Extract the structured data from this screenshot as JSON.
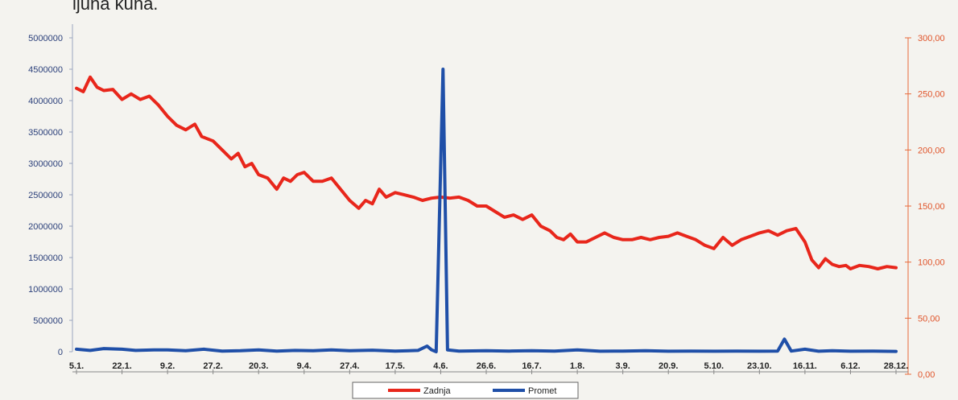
{
  "caption": "ijuna kuna.",
  "chart_data": {
    "type": "line",
    "x_labels": [
      "5.1.",
      "22.1.",
      "9.2.",
      "27.2.",
      "20.3.",
      "9.4.",
      "27.4.",
      "17.5.",
      "4.6.",
      "26.6.",
      "16.7.",
      "1.8.",
      "3.9.",
      "20.9.",
      "5.10.",
      "23.10.",
      "16.11.",
      "6.12.",
      "28.12."
    ],
    "left_axis": {
      "ticks": [
        0,
        500000,
        1000000,
        1500000,
        2000000,
        2500000,
        3000000,
        3500000,
        4000000,
        4500000,
        5000000
      ],
      "ylim": [
        0,
        5000000
      ]
    },
    "right_axis": {
      "ticks": [
        "0,00",
        "50,00",
        "100,00",
        "150,00",
        "200,00",
        "250,00",
        "300,00"
      ],
      "ylim": [
        0,
        300
      ]
    },
    "colors": {
      "zadnja": "#e8261b",
      "promet": "#1f4fa8",
      "right_axis": "#e86a3a",
      "left_axis": "#9aa4bf"
    },
    "series": [
      {
        "name": "Zadnja",
        "axis": "right",
        "values": [
          [
            0,
            255
          ],
          [
            0.15,
            252
          ],
          [
            0.3,
            265
          ],
          [
            0.45,
            256
          ],
          [
            0.6,
            253
          ],
          [
            0.8,
            254
          ],
          [
            1,
            245
          ],
          [
            1.2,
            250
          ],
          [
            1.4,
            245
          ],
          [
            1.6,
            248
          ],
          [
            1.8,
            240
          ],
          [
            2,
            230
          ],
          [
            2.2,
            222
          ],
          [
            2.4,
            218
          ],
          [
            2.6,
            223
          ],
          [
            2.75,
            212
          ],
          [
            3,
            208
          ],
          [
            3.2,
            200
          ],
          [
            3.4,
            192
          ],
          [
            3.55,
            197
          ],
          [
            3.7,
            185
          ],
          [
            3.85,
            188
          ],
          [
            4,
            178
          ],
          [
            4.2,
            175
          ],
          [
            4.4,
            165
          ],
          [
            4.55,
            175
          ],
          [
            4.7,
            172
          ],
          [
            4.85,
            178
          ],
          [
            5,
            180
          ],
          [
            5.2,
            172
          ],
          [
            5.4,
            172
          ],
          [
            5.6,
            175
          ],
          [
            5.8,
            165
          ],
          [
            6,
            155
          ],
          [
            6.2,
            148
          ],
          [
            6.35,
            155
          ],
          [
            6.5,
            152
          ],
          [
            6.65,
            165
          ],
          [
            6.8,
            158
          ],
          [
            7,
            162
          ],
          [
            7.2,
            160
          ],
          [
            7.4,
            158
          ],
          [
            7.6,
            155
          ],
          [
            7.8,
            157
          ],
          [
            8,
            158
          ],
          [
            8.2,
            157
          ],
          [
            8.4,
            158
          ],
          [
            8.6,
            155
          ],
          [
            8.8,
            150
          ],
          [
            9,
            150
          ],
          [
            9.2,
            145
          ],
          [
            9.4,
            140
          ],
          [
            9.6,
            142
          ],
          [
            9.8,
            138
          ],
          [
            10,
            142
          ],
          [
            10.2,
            132
          ],
          [
            10.4,
            128
          ],
          [
            10.55,
            122
          ],
          [
            10.7,
            120
          ],
          [
            10.85,
            125
          ],
          [
            11,
            118
          ],
          [
            11.2,
            118
          ],
          [
            11.4,
            122
          ],
          [
            11.6,
            126
          ],
          [
            11.8,
            122
          ],
          [
            12,
            120
          ],
          [
            12.2,
            120
          ],
          [
            12.4,
            122
          ],
          [
            12.6,
            120
          ],
          [
            12.8,
            122
          ],
          [
            13,
            123
          ],
          [
            13.2,
            126
          ],
          [
            13.4,
            123
          ],
          [
            13.6,
            120
          ],
          [
            13.8,
            115
          ],
          [
            14,
            112
          ],
          [
            14.2,
            122
          ],
          [
            14.4,
            115
          ],
          [
            14.6,
            120
          ],
          [
            14.8,
            123
          ],
          [
            15,
            126
          ],
          [
            15.2,
            128
          ],
          [
            15.4,
            124
          ],
          [
            15.6,
            128
          ],
          [
            15.8,
            130
          ],
          [
            16,
            118
          ],
          [
            16.15,
            102
          ],
          [
            16.3,
            95
          ],
          [
            16.45,
            103
          ],
          [
            16.6,
            98
          ],
          [
            16.75,
            96
          ],
          [
            16.9,
            97
          ],
          [
            17,
            94
          ],
          [
            17.2,
            97
          ],
          [
            17.4,
            96
          ],
          [
            17.6,
            94
          ],
          [
            17.8,
            96
          ],
          [
            18,
            95
          ]
        ]
      },
      {
        "name": "Promet",
        "axis": "left",
        "values": [
          [
            0,
            40000
          ],
          [
            0.3,
            20000
          ],
          [
            0.6,
            50000
          ],
          [
            1,
            40000
          ],
          [
            1.3,
            20000
          ],
          [
            1.7,
            30000
          ],
          [
            2,
            30000
          ],
          [
            2.4,
            15000
          ],
          [
            2.8,
            40000
          ],
          [
            3.2,
            10000
          ],
          [
            3.6,
            15000
          ],
          [
            4,
            30000
          ],
          [
            4.4,
            10000
          ],
          [
            4.8,
            20000
          ],
          [
            5.2,
            15000
          ],
          [
            5.6,
            30000
          ],
          [
            6,
            15000
          ],
          [
            6.5,
            25000
          ],
          [
            7,
            10000
          ],
          [
            7.5,
            20000
          ],
          [
            7.7,
            90000
          ],
          [
            7.8,
            30000
          ],
          [
            7.9,
            0
          ],
          [
            8.05,
            4500000
          ],
          [
            8.15,
            30000
          ],
          [
            8.4,
            10000
          ],
          [
            9,
            15000
          ],
          [
            9.5,
            10000
          ],
          [
            10,
            15000
          ],
          [
            10.5,
            10000
          ],
          [
            11,
            30000
          ],
          [
            11.5,
            8000
          ],
          [
            12,
            10000
          ],
          [
            12.5,
            15000
          ],
          [
            13,
            8000
          ],
          [
            13.5,
            10000
          ],
          [
            14,
            8000
          ],
          [
            14.5,
            10000
          ],
          [
            15,
            8000
          ],
          [
            15.4,
            10000
          ],
          [
            15.55,
            200000
          ],
          [
            15.7,
            10000
          ],
          [
            16,
            40000
          ],
          [
            16.3,
            8000
          ],
          [
            16.6,
            15000
          ],
          [
            17,
            8000
          ],
          [
            17.5,
            10000
          ],
          [
            18,
            5000
          ]
        ]
      }
    ],
    "legend": [
      "Zadnja",
      "Promet"
    ],
    "legend_position": "bottom-center",
    "grid": false
  }
}
